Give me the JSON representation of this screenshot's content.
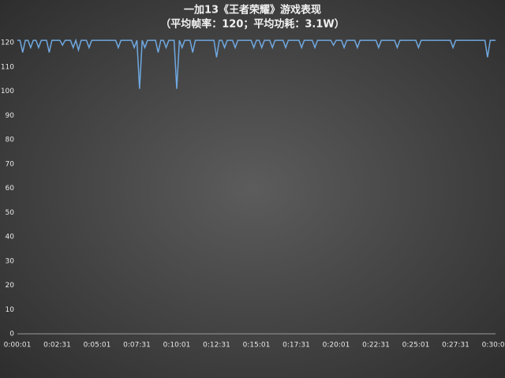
{
  "chart_data": {
    "type": "line",
    "title": "一加13《王者荣耀》游戏表现",
    "subtitle": "（平均帧率：120；平均功耗：3.1W）",
    "categories": [
      "0:00:01",
      null,
      null,
      null,
      null,
      null,
      null,
      null,
      null,
      null,
      null,
      null,
      null,
      null,
      null,
      "0:02:31",
      null,
      null,
      null,
      null,
      null,
      null,
      null,
      null,
      null,
      null,
      null,
      null,
      null,
      null,
      "0:05:01",
      null,
      null,
      null,
      null,
      null,
      null,
      null,
      null,
      null,
      null,
      null,
      null,
      null,
      null,
      "0:07:31",
      null,
      null,
      null,
      null,
      null,
      null,
      null,
      null,
      null,
      null,
      null,
      null,
      null,
      null,
      "0:10:01",
      null,
      null,
      null,
      null,
      null,
      null,
      null,
      null,
      null,
      null,
      null,
      null,
      null,
      null,
      "0:12:31",
      null,
      null,
      null,
      null,
      null,
      null,
      null,
      null,
      null,
      null,
      null,
      null,
      null,
      null,
      "0:15:01",
      null,
      null,
      null,
      null,
      null,
      null,
      null,
      null,
      null,
      null,
      null,
      null,
      null,
      null,
      "0:17:31",
      null,
      null,
      null,
      null,
      null,
      null,
      null,
      null,
      null,
      null,
      null,
      null,
      null,
      null,
      "0:20:01",
      null,
      null,
      null,
      null,
      null,
      null,
      null,
      null,
      null,
      null,
      null,
      null,
      null,
      null,
      "0:22:31",
      null,
      null,
      null,
      null,
      null,
      null,
      null,
      null,
      null,
      null,
      null,
      null,
      null,
      null,
      "0:25:01",
      null,
      null,
      null,
      null,
      null,
      null,
      null,
      null,
      null,
      null,
      null,
      null,
      null,
      null,
      "0:27:31",
      null,
      null,
      null,
      null,
      null,
      null,
      null,
      null,
      null,
      null,
      null,
      null,
      null,
      null,
      "0:30:01"
    ],
    "series": [
      {
        "color": "#6fa8e0",
        "values": [
          121,
          121,
          116,
          121,
          121,
          118,
          121,
          121,
          118,
          121,
          121,
          121,
          116,
          121,
          121,
          121,
          121,
          119,
          121,
          121,
          121,
          118,
          121,
          117,
          121,
          121,
          121,
          118,
          121,
          121,
          121,
          121,
          121,
          121,
          121,
          121,
          121,
          121,
          118,
          121,
          121,
          121,
          121,
          121,
          118,
          121,
          101,
          121,
          118,
          121,
          121,
          121,
          121,
          116,
          121,
          121,
          118,
          121,
          121,
          121,
          101,
          121,
          118,
          121,
          121,
          121,
          116,
          121,
          121,
          121,
          121,
          121,
          121,
          121,
          121,
          114,
          121,
          121,
          118,
          121,
          121,
          121,
          118,
          121,
          121,
          121,
          121,
          121,
          121,
          118,
          121,
          121,
          118,
          121,
          121,
          121,
          118,
          121,
          121,
          121,
          121,
          118,
          121,
          121,
          121,
          121,
          121,
          118,
          121,
          121,
          121,
          121,
          118,
          121,
          121,
          121,
          121,
          121,
          121,
          119,
          121,
          121,
          121,
          118,
          121,
          121,
          121,
          121,
          118,
          121,
          121,
          121,
          121,
          121,
          121,
          121,
          118,
          121,
          121,
          121,
          121,
          121,
          121,
          118,
          121,
          121,
          121,
          121,
          121,
          121,
          121,
          118,
          121,
          121,
          121,
          121,
          121,
          121,
          121,
          121,
          121,
          121,
          121,
          121,
          118,
          121,
          121,
          121,
          121,
          121,
          121,
          121,
          121,
          121,
          121,
          121,
          121,
          114,
          121,
          121,
          121
        ]
      }
    ],
    "ylim": [
      0,
      122
    ],
    "yticks": [
      0,
      10,
      20,
      30,
      40,
      50,
      60,
      70,
      80,
      90,
      100,
      110,
      120
    ]
  }
}
